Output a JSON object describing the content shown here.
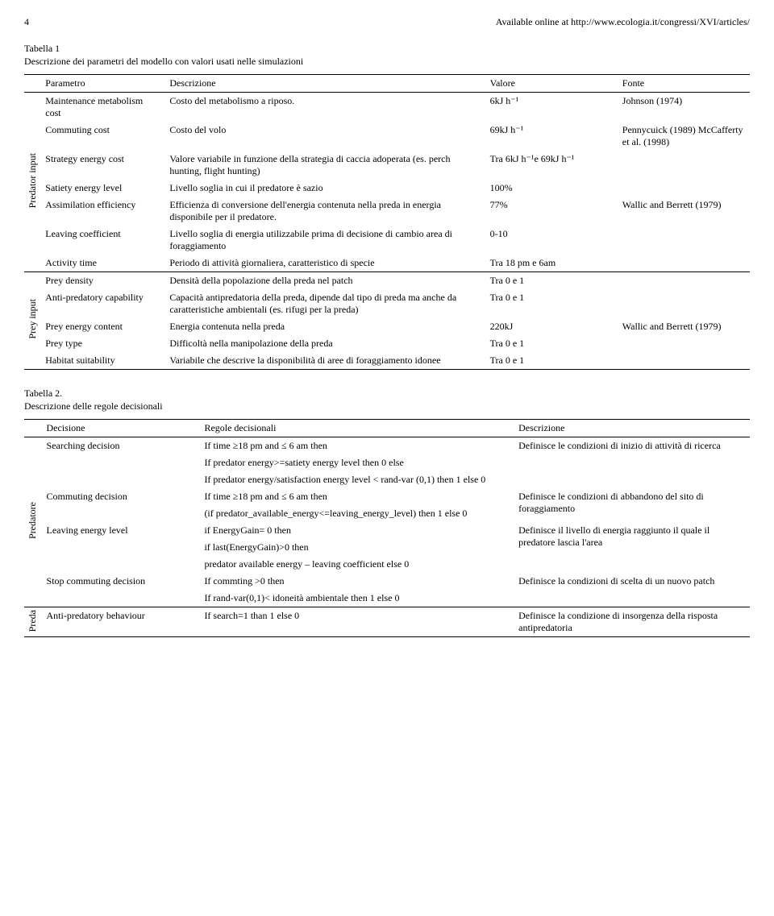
{
  "header": {
    "page_num": "4",
    "url": "Available online at http://www.ecologia.it/congressi/XVI/articles/"
  },
  "table1": {
    "caption_line1": "Tabella 1",
    "caption_line2": "Descrizione dei parametri del modello con valori usati nelle simulazioni",
    "headers": {
      "parametro": "Parametro",
      "descrizione": "Descrizione",
      "valore": "Valore",
      "fonte": "Fonte"
    },
    "group1_label": "Predator input",
    "group2_label": "Prey  input",
    "rows1": [
      {
        "p": "Maintenance metabolism cost",
        "d": "Costo del metabolismo a riposo.",
        "v": "6kJ h⁻¹",
        "f": "Johnson (1974)"
      },
      {
        "p": "Commuting cost",
        "d": "Costo del volo",
        "v": "69kJ  h⁻¹",
        "f": "Pennycuick (1989) McCafferty et al. (1998)"
      },
      {
        "p": "Strategy energy cost",
        "d": "Valore variabile in funzione della strategia di caccia adoperata (es. perch hunting, flight hunting)",
        "v": "Tra  6kJ h⁻¹e 69kJ  h⁻¹",
        "f": ""
      },
      {
        "p": "Satiety energy level",
        "d": "Livello soglia in cui il predatore è sazio",
        "v": "100%",
        "f": ""
      },
      {
        "p": "Assimilation efficiency",
        "d": "Efficienza di conversione dell'energia contenuta nella preda in energia disponibile per il predatore.",
        "v": "77%",
        "f": "Wallic and Berrett (1979)"
      },
      {
        "p": "Leaving coefficient",
        "d": "Livello soglia di energia utilizzabile prima di decisione di cambio area di foraggiamento",
        "v": "0-10",
        "f": ""
      },
      {
        "p": "Activity time",
        "d": "Periodo di attività giornaliera, caratteristico di specie",
        "v": "Tra 18 pm e 6am",
        "f": ""
      }
    ],
    "rows2": [
      {
        "p": "Prey density",
        "d": "Densità della popolazione della preda nel patch",
        "v": "Tra 0 e 1",
        "f": ""
      },
      {
        "p": "Anti-predatory capability",
        "d": "Capacità antipredatoria della preda, dipende dal tipo di preda ma anche da caratteristiche ambientali (es. rifugi per la preda)",
        "v": "Tra 0 e 1",
        "f": ""
      },
      {
        "p": "Prey energy content",
        "d": "Energia contenuta nella preda",
        "v": "220kJ",
        "f": "Wallic and Berrett (1979)"
      },
      {
        "p": "Prey type",
        "d": "Difficoltà nella manipolazione della preda",
        "v": "Tra 0 e 1",
        "f": ""
      },
      {
        "p": "Habitat suitability",
        "d": "Variabile che descrive la disponibilità di aree di foraggiamento idonee",
        "v": "Tra 0 e 1",
        "f": ""
      }
    ]
  },
  "table2": {
    "caption_line1": "Tabella 2.",
    "caption_line2": "Descrizione delle regole decisionali",
    "headers": {
      "decisione": "Decisione",
      "regole": "Regole decisionali",
      "descrizione": "Descrizione"
    },
    "group1_label": "Predatore",
    "group2_label": "Preda",
    "rows1": [
      {
        "dec": "Searching decision",
        "r1": "If time ≥18 pm and ≤ 6 am then",
        "r2": "If predator energy>=satiety energy level then 0 else",
        "r3": "If predator energy/satisfaction energy level < rand-var (0,1) then 1 else 0",
        "de": "Definisce le condizioni di inizio di attività di ricerca"
      },
      {
        "dec": "Commuting decision",
        "r1": "If time ≥18 pm and ≤  6 am then",
        "r2": "(if predator_available_energy<=leaving_energy_level) then 1 else 0",
        "r3": "",
        "de": "Definisce le condizioni di abbandono del sito di foraggiamento"
      },
      {
        "dec": "Leaving energy level",
        "r1": "if EnergyGain= 0 then",
        "r2": "if last(EnergyGain)>0 then",
        "r3": "predator available energy – leaving coefficient else 0",
        "de": "Definisce il livello di energia raggiunto il quale il predatore lascia l'area"
      },
      {
        "dec": "Stop commuting decision",
        "r1": "If commting >0 then",
        "r2": "If rand-var(0,1)< idoneità ambientale then 1 else 0",
        "r3": "",
        "de": "Definisce la condizioni di scelta di un nuovo patch"
      }
    ],
    "rows2": [
      {
        "dec": "Anti-predatory behaviour",
        "r1": "If search=1 than 1 else 0",
        "r2": "",
        "r3": "",
        "de": "Definisce la condizione di insorgenza della risposta antipredatoria"
      }
    ]
  }
}
